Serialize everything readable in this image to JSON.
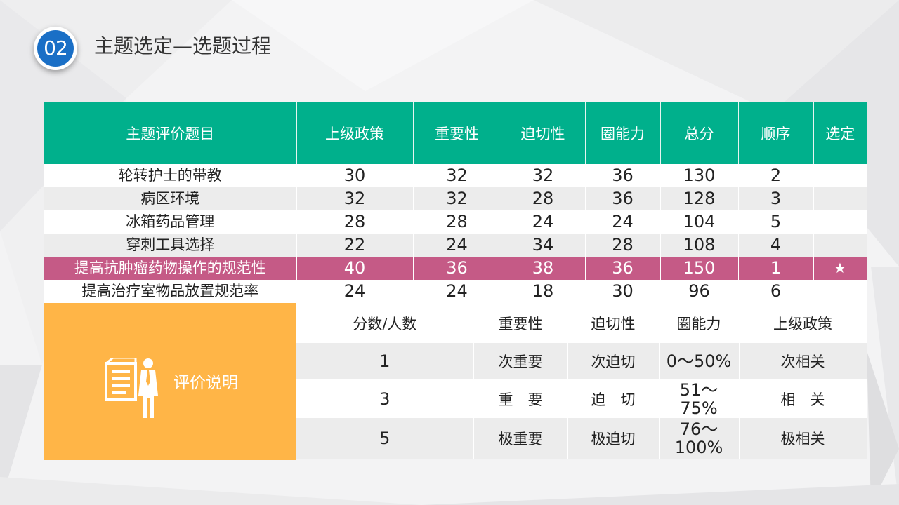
{
  "header": {
    "badge_number": "02",
    "title": "主题选定—选题过程"
  },
  "table": {
    "headers": [
      "主题评价题目",
      "上级政策",
      "重要性",
      "迫切性",
      "圈能力",
      "总分",
      "顺序",
      "选定"
    ],
    "rows": [
      {
        "name": "轮转护士的带教",
        "values": [
          "30",
          "32",
          "32",
          "36",
          "130",
          "2",
          ""
        ]
      },
      {
        "name": "病区环境",
        "values": [
          "32",
          "32",
          "28",
          "36",
          "128",
          "3",
          ""
        ]
      },
      {
        "name": "冰箱药品管理",
        "values": [
          "28",
          "28",
          "24",
          "24",
          "104",
          "5",
          ""
        ]
      },
      {
        "name": "穿刺工具选择",
        "values": [
          "22",
          "24",
          "34",
          "28",
          "108",
          "4",
          ""
        ]
      },
      {
        "name": "提高抗肿瘤药物操作的规范性",
        "values": [
          "40",
          "36",
          "38",
          "36",
          "150",
          "1",
          "★"
        ]
      },
      {
        "name": "提高治疗室物品放置规范率",
        "values": [
          "24",
          "24",
          "18",
          "30",
          "96",
          "6",
          ""
        ]
      }
    ]
  },
  "legend": {
    "label": "评价说明",
    "headers": [
      "分数/人数",
      "重要性",
      "迫切性",
      "圈能力",
      "上级政策"
    ],
    "rows": [
      [
        "1",
        "次重要",
        "次迫切",
        "0～50%",
        "次相关"
      ],
      [
        "3",
        "重　要",
        "迫　切",
        "51～\n75%",
        "相　关"
      ],
      [
        "5",
        "极重要",
        "极迫切",
        "76～\n100%",
        "极相关"
      ]
    ]
  },
  "colors": {
    "header_green": "#00b08c",
    "selected_row": "#c55a86",
    "legend_orange": "#ffb547",
    "badge_blue": "#1a6fc6"
  }
}
